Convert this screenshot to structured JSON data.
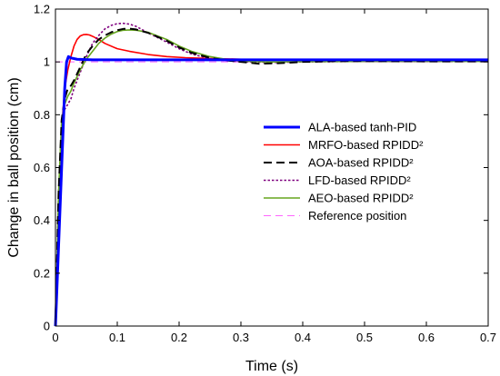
{
  "chart_data": {
    "type": "line",
    "title": "",
    "xlabel": "Time (s)",
    "ylabel": "Change in ball position (cm)",
    "xlim": [
      0,
      0.7
    ],
    "ylim": [
      0,
      1.2
    ],
    "xticks": [
      0,
      0.1,
      0.2,
      0.3,
      0.4,
      0.5,
      0.6,
      0.7
    ],
    "xtick_labels": [
      "0",
      "0.1",
      "0.2",
      "0.3",
      "0.4",
      "0.5",
      "0.6",
      "0.7"
    ],
    "yticks": [
      0,
      0.2,
      0.4,
      0.6,
      0.8,
      1,
      1.2
    ],
    "ytick_labels": [
      "0",
      "0.2",
      "0.4",
      "0.6",
      "0.8",
      "1",
      "1.2"
    ],
    "grid": false,
    "legend_position": "center-right",
    "series": [
      {
        "name": "ALA-based tanh-PID",
        "color": "#0000ff",
        "style": "solid-thick",
        "x": [
          0,
          0.003,
          0.006,
          0.009,
          0.012,
          0.015,
          0.018,
          0.021,
          0.025,
          0.035,
          0.06,
          0.1,
          0.2,
          0.3,
          0.45,
          0.6,
          0.7
        ],
        "y": [
          0,
          0.18,
          0.36,
          0.54,
          0.72,
          0.9,
          1.0,
          1.02,
          1.015,
          1.01,
          1.008,
          1.008,
          1.008,
          1.008,
          1.008,
          1.008,
          1.008
        ]
      },
      {
        "name": "MRFO-based RPIDD²",
        "color": "#ff0000",
        "style": "solid",
        "x": [
          0,
          0.005,
          0.01,
          0.015,
          0.02,
          0.025,
          0.03,
          0.035,
          0.04,
          0.045,
          0.05,
          0.055,
          0.06,
          0.07,
          0.08,
          0.1,
          0.12,
          0.15,
          0.18,
          0.21,
          0.25,
          0.3,
          0.4,
          0.5,
          0.7
        ],
        "y": [
          0,
          0.45,
          0.75,
          0.9,
          0.97,
          1.02,
          1.06,
          1.085,
          1.098,
          1.103,
          1.104,
          1.102,
          1.097,
          1.085,
          1.07,
          1.05,
          1.04,
          1.028,
          1.02,
          1.016,
          1.013,
          1.01,
          1.008,
          1.007,
          1.006
        ]
      },
      {
        "name": "AOA-based RPIDD²",
        "color": "#000000",
        "style": "dashed",
        "x": [
          0,
          0.005,
          0.01,
          0.015,
          0.02,
          0.025,
          0.03,
          0.04,
          0.05,
          0.06,
          0.07,
          0.08,
          0.09,
          0.1,
          0.11,
          0.12,
          0.13,
          0.15,
          0.18,
          0.2,
          0.22,
          0.25,
          0.28,
          0.3,
          0.33,
          0.36,
          0.4,
          0.45,
          0.5,
          0.6,
          0.7
        ],
        "y": [
          0,
          0.5,
          0.78,
          0.86,
          0.9,
          0.91,
          0.93,
          0.98,
          1.03,
          1.06,
          1.085,
          1.1,
          1.112,
          1.12,
          1.125,
          1.126,
          1.123,
          1.11,
          1.08,
          1.055,
          1.035,
          1.015,
          1.005,
          1.0,
          0.993,
          0.995,
          1.0,
          1.003,
          1.003,
          1.002,
          1.002
        ]
      },
      {
        "name": "LFD-based RPIDD²",
        "color": "#7f007f",
        "style": "dotted",
        "x": [
          0,
          0.005,
          0.01,
          0.015,
          0.02,
          0.025,
          0.03,
          0.04,
          0.05,
          0.06,
          0.07,
          0.08,
          0.09,
          0.1,
          0.11,
          0.12,
          0.13,
          0.15,
          0.18,
          0.2,
          0.22,
          0.25,
          0.28,
          0.3,
          0.35,
          0.4,
          0.5,
          0.6,
          0.7
        ],
        "y": [
          0,
          0.5,
          0.76,
          0.82,
          0.84,
          0.86,
          0.9,
          0.96,
          1.02,
          1.07,
          1.1,
          1.125,
          1.138,
          1.145,
          1.146,
          1.143,
          1.135,
          1.11,
          1.075,
          1.05,
          1.03,
          1.012,
          1.004,
          1.001,
          0.998,
          1.0,
          1.002,
          1.002,
          1.002
        ]
      },
      {
        "name": "AEO-based RPIDD²",
        "color": "#66a61e",
        "style": "solid",
        "x": [
          0,
          0.005,
          0.01,
          0.015,
          0.02,
          0.025,
          0.03,
          0.04,
          0.05,
          0.06,
          0.07,
          0.08,
          0.09,
          0.1,
          0.11,
          0.12,
          0.13,
          0.15,
          0.18,
          0.2,
          0.22,
          0.25,
          0.28,
          0.3,
          0.35,
          0.4,
          0.5,
          0.6,
          0.7
        ],
        "y": [
          0,
          0.5,
          0.78,
          0.84,
          0.87,
          0.89,
          0.92,
          0.97,
          1.01,
          1.04,
          1.07,
          1.09,
          1.105,
          1.115,
          1.12,
          1.121,
          1.12,
          1.112,
          1.085,
          1.06,
          1.04,
          1.02,
          1.008,
          1.003,
          1.0,
          1.001,
          1.002,
          1.002,
          1.002
        ]
      },
      {
        "name": "Reference position",
        "color": "#ff66ff",
        "style": "dashed-thin",
        "x": [
          0,
          0.7
        ],
        "y": [
          1,
          1
        ]
      }
    ]
  }
}
